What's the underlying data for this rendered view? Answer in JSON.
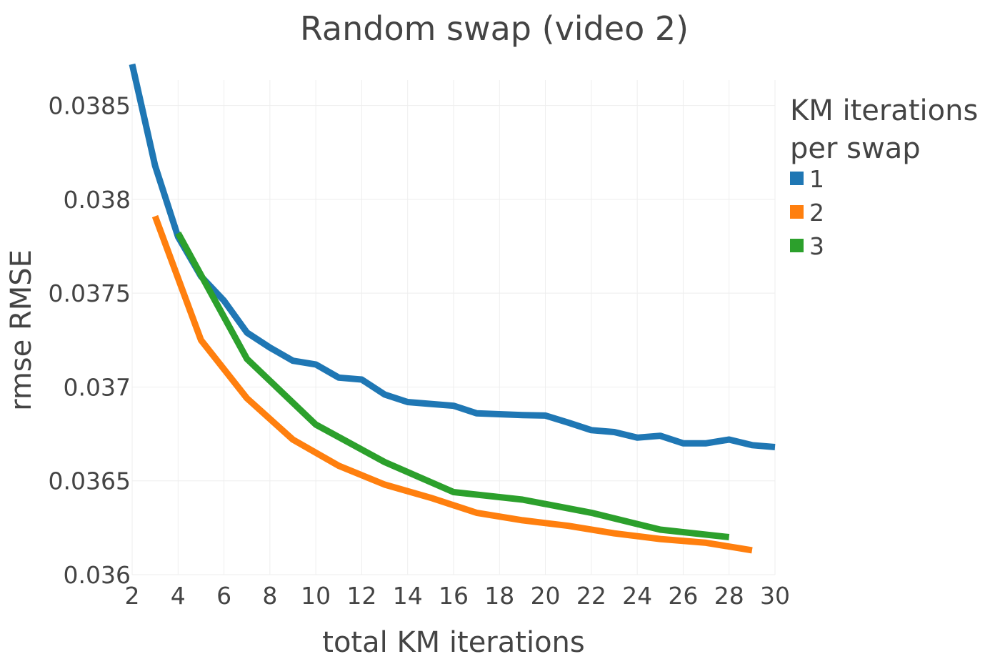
{
  "chart_data": {
    "type": "line",
    "title": "Random swap (video 2)",
    "xlabel": "total KM iterations",
    "ylabel": "rmse RMSE",
    "xlim": [
      2,
      30
    ],
    "ylim": [
      0.036,
      0.03875
    ],
    "x_ticks": [
      2,
      4,
      6,
      8,
      10,
      12,
      14,
      16,
      18,
      20,
      22,
      24,
      26,
      28,
      30
    ],
    "y_ticks": [
      0.036,
      0.0365,
      0.037,
      0.0375,
      0.038,
      0.0385
    ],
    "x_tick_labels": [
      "2",
      "4",
      "6",
      "8",
      "10",
      "12",
      "14",
      "16",
      "18",
      "20",
      "22",
      "24",
      "26",
      "28",
      "30"
    ],
    "y_tick_labels": [
      "0.036",
      "0.0365",
      "0.037",
      "0.0375",
      "0.038",
      "0.0385"
    ],
    "grid": true,
    "legend": {
      "title_lines": [
        "KM iterations",
        "per swap"
      ],
      "placement": "top-right"
    },
    "series": [
      {
        "name": "1",
        "color": "#1f77b4",
        "x": [
          2,
          3,
          4,
          5,
          6,
          7,
          8,
          9,
          10,
          11,
          12,
          13,
          14,
          15,
          16,
          17,
          18,
          19,
          20,
          21,
          22,
          23,
          24,
          25,
          26,
          27,
          28,
          29,
          30
        ],
        "y": [
          0.03872,
          0.03818,
          0.0378,
          0.03759,
          0.03746,
          0.03729,
          0.03721,
          0.03714,
          0.03712,
          0.03705,
          0.03704,
          0.03696,
          0.03692,
          0.03691,
          0.0369,
          0.03686,
          0.036855,
          0.03685,
          0.036848,
          0.03681,
          0.03677,
          0.03676,
          0.03673,
          0.03674,
          0.0367,
          0.0367,
          0.03672,
          0.03669,
          0.03668
        ]
      },
      {
        "name": "2",
        "color": "#ff7f0e",
        "x": [
          3,
          5,
          7,
          9,
          11,
          13,
          15,
          17,
          19,
          21,
          23,
          25,
          27,
          29
        ],
        "y": [
          0.03791,
          0.03725,
          0.03694,
          0.03672,
          0.03658,
          0.03648,
          0.03641,
          0.03633,
          0.03629,
          0.03626,
          0.03622,
          0.03619,
          0.03617,
          0.03613
        ]
      },
      {
        "name": "3",
        "color": "#2ca02c",
        "x": [
          4,
          7,
          10,
          13,
          16,
          19,
          22,
          25,
          28
        ],
        "y": [
          0.03782,
          0.03715,
          0.0368,
          0.0366,
          0.03644,
          0.0364,
          0.03633,
          0.03624,
          0.0362
        ]
      }
    ]
  }
}
